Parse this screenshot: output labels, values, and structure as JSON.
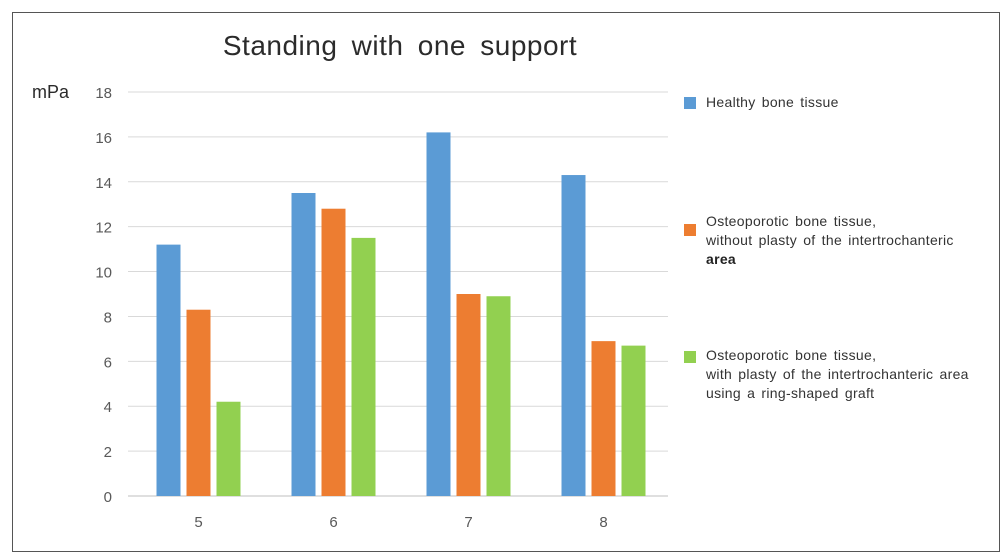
{
  "chart_data": {
    "type": "bar",
    "title": "Standing with one support",
    "ylabel": "mPa",
    "xlabel": "",
    "categories": [
      "5",
      "6",
      "7",
      "8"
    ],
    "ylim": [
      0,
      18
    ],
    "yticks": [
      "0",
      "2",
      "4",
      "6",
      "8",
      "10",
      "12",
      "14",
      "16",
      "18"
    ],
    "grid": true,
    "legend_position": "right",
    "series": [
      {
        "name": "Healthy bone tissue",
        "color": "#5b9bd5",
        "values": [
          11.2,
          13.5,
          16.2,
          14.3
        ]
      },
      {
        "name": "Osteoporotic bone tissue,\nwithout plasty of the intertrochanteric",
        "name_bold": "area",
        "color": "#ed7d31",
        "values": [
          8.3,
          12.8,
          9.0,
          6.9
        ]
      },
      {
        "name": "Osteoporotic bone tissue,\nwith plasty of the intertrochanteric area\nusing a ring-shaped graft",
        "color": "#92d050",
        "values": [
          4.2,
          11.5,
          8.9,
          6.7
        ]
      }
    ]
  }
}
